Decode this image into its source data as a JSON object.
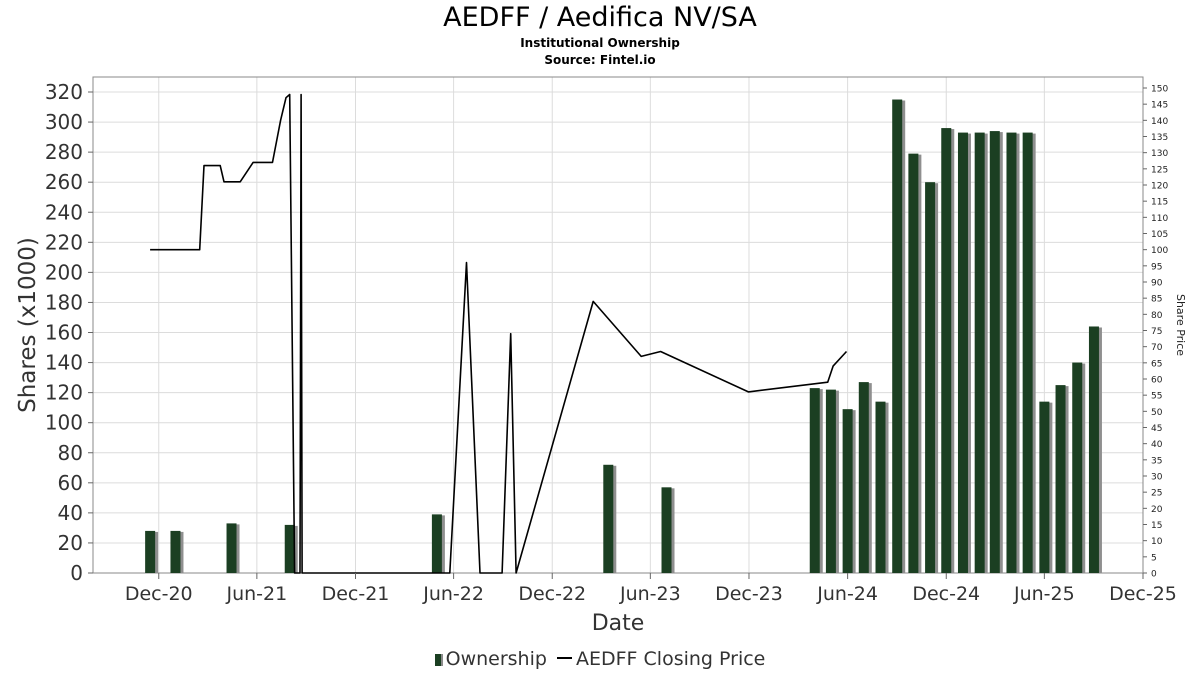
{
  "chart_data": {
    "type": "bar",
    "title": "AEDFF / Aedifica NV/SA",
    "subtitle": [
      "Institutional Ownership",
      "Source: Fintel.io"
    ],
    "xlabel": "Date",
    "ylabel": "Shares (x1000)",
    "y2label": "Share Price",
    "ylim": [
      0,
      320
    ],
    "y2lim": [
      0,
      150
    ],
    "x_range": [
      "2020-08-01",
      "2025-12-01"
    ],
    "x_ticks": [
      {
        "label": "Dec-20",
        "date": "2020-12-01"
      },
      {
        "label": "Jun-21",
        "date": "2021-06-01"
      },
      {
        "label": "Dec-21",
        "date": "2021-12-01"
      },
      {
        "label": "Jun-22",
        "date": "2022-06-01"
      },
      {
        "label": "Dec-22",
        "date": "2022-12-01"
      },
      {
        "label": "Jun-23",
        "date": "2023-06-01"
      },
      {
        "label": "Dec-23",
        "date": "2023-12-01"
      },
      {
        "label": "Jun-24",
        "date": "2024-06-01"
      },
      {
        "label": "Dec-24",
        "date": "2024-12-01"
      },
      {
        "label": "Jun-25",
        "date": "2025-06-01"
      },
      {
        "label": "Dec-25",
        "date": "2025-12-01"
      }
    ],
    "y_ticks": [
      0,
      20,
      40,
      60,
      80,
      100,
      120,
      140,
      160,
      180,
      200,
      220,
      240,
      260,
      280,
      300,
      320
    ],
    "y2_ticks": [
      0,
      5,
      10,
      15,
      20,
      25,
      30,
      35,
      40,
      45,
      50,
      55,
      60,
      65,
      70,
      75,
      80,
      85,
      90,
      95,
      100,
      105,
      110,
      115,
      120,
      125,
      130,
      135,
      140,
      145,
      150
    ],
    "grid": true,
    "legend_position": "bottom",
    "series": [
      {
        "name": "Ownership",
        "kind": "bar",
        "axis": "left",
        "color": "#1b3f22",
        "points": [
          {
            "x": "2020-11-15",
            "y": 28
          },
          {
            "x": "2021-01-01",
            "y": 28
          },
          {
            "x": "2021-04-15",
            "y": 33
          },
          {
            "x": "2021-08-01",
            "y": 32
          },
          {
            "x": "2022-05-01",
            "y": 39
          },
          {
            "x": "2023-03-15",
            "y": 72
          },
          {
            "x": "2023-07-01",
            "y": 57
          },
          {
            "x": "2024-04-01",
            "y": 123
          },
          {
            "x": "2024-05-01",
            "y": 122
          },
          {
            "x": "2024-06-01",
            "y": 109
          },
          {
            "x": "2024-07-01",
            "y": 127
          },
          {
            "x": "2024-08-01",
            "y": 114
          },
          {
            "x": "2024-09-01",
            "y": 315
          },
          {
            "x": "2024-10-01",
            "y": 279
          },
          {
            "x": "2024-11-01",
            "y": 260
          },
          {
            "x": "2024-12-01",
            "y": 296
          },
          {
            "x": "2025-01-01",
            "y": 293
          },
          {
            "x": "2025-02-01",
            "y": 293
          },
          {
            "x": "2025-03-01",
            "y": 294
          },
          {
            "x": "2025-04-01",
            "y": 293
          },
          {
            "x": "2025-05-01",
            "y": 293
          },
          {
            "x": "2025-06-01",
            "y": 114
          },
          {
            "x": "2025-07-01",
            "y": 125
          },
          {
            "x": "2025-08-01",
            "y": 140
          },
          {
            "x": "2025-09-01",
            "y": 164
          }
        ]
      },
      {
        "name": "AEDFF Closing Price",
        "kind": "line",
        "axis": "right",
        "color": "#000000",
        "points": [
          {
            "x": "2020-11-15",
            "y": 100
          },
          {
            "x": "2021-02-15",
            "y": 100
          },
          {
            "x": "2021-02-23",
            "y": 126
          },
          {
            "x": "2021-03-25",
            "y": 126
          },
          {
            "x": "2021-04-01",
            "y": 121
          },
          {
            "x": "2021-05-01",
            "y": 121
          },
          {
            "x": "2021-05-25",
            "y": 127
          },
          {
            "x": "2021-06-30",
            "y": 127
          },
          {
            "x": "2021-07-15",
            "y": 140
          },
          {
            "x": "2021-07-25",
            "y": 147
          },
          {
            "x": "2021-08-01",
            "y": 148
          },
          {
            "x": "2021-08-10",
            "y": 0
          },
          {
            "x": "2021-08-20",
            "y": 0
          },
          {
            "x": "2021-08-22",
            "y": 148
          },
          {
            "x": "2021-08-24",
            "y": 0
          },
          {
            "x": "2022-05-25",
            "y": 0
          },
          {
            "x": "2022-06-25",
            "y": 96
          },
          {
            "x": "2022-07-20",
            "y": 0
          },
          {
            "x": "2022-08-30",
            "y": 0
          },
          {
            "x": "2022-09-15",
            "y": 74
          },
          {
            "x": "2022-09-25",
            "y": 0
          },
          {
            "x": "2023-02-15",
            "y": 84
          },
          {
            "x": "2023-05-15",
            "y": 67
          },
          {
            "x": "2023-06-20",
            "y": 68.5
          },
          {
            "x": "2023-11-30",
            "y": 56
          },
          {
            "x": "2024-04-25",
            "y": 59
          },
          {
            "x": "2024-05-05",
            "y": 64
          },
          {
            "x": "2024-05-30",
            "y": 68.5
          }
        ]
      }
    ]
  },
  "legend": {
    "ownership_label": "Ownership",
    "price_label": "AEDFF Closing Price"
  }
}
